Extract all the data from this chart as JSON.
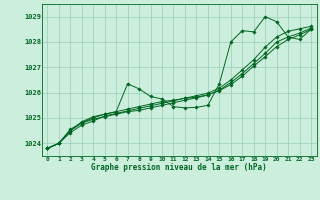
{
  "bg_color": "#cceedd",
  "grid_color": "#99ccbb",
  "line_color": "#006622",
  "marker_color": "#006622",
  "title": "Graphe pression niveau de la mer (hPa)",
  "xlim": [
    -0.5,
    23.5
  ],
  "ylim": [
    1023.5,
    1029.5
  ],
  "yticks": [
    1024,
    1025,
    1026,
    1027,
    1028,
    1029
  ],
  "xticks": [
    0,
    1,
    2,
    3,
    4,
    5,
    6,
    7,
    8,
    9,
    10,
    11,
    12,
    13,
    14,
    15,
    16,
    17,
    18,
    19,
    20,
    21,
    22,
    23
  ],
  "series": [
    {
      "x": [
        0,
        1,
        2,
        3,
        4,
        5,
        6,
        7,
        8,
        9,
        10,
        11,
        12,
        13,
        14,
        15,
        16,
        17,
        18,
        19,
        20,
        21,
        22,
        23
      ],
      "y": [
        1023.8,
        1024.0,
        1024.5,
        1024.8,
        1024.95,
        1025.05,
        1025.15,
        1025.25,
        1025.3,
        1025.4,
        1025.5,
        1025.6,
        1025.7,
        1025.8,
        1025.9,
        1026.1,
        1026.4,
        1026.75,
        1027.15,
        1027.55,
        1028.0,
        1028.2,
        1028.35,
        1028.55
      ]
    },
    {
      "x": [
        0,
        1,
        2,
        3,
        4,
        5,
        6,
        7,
        8,
        9,
        10,
        11,
        12,
        13,
        14,
        15,
        16,
        17,
        18,
        19,
        20,
        21,
        22,
        23
      ],
      "y": [
        1023.8,
        1024.0,
        1024.5,
        1024.85,
        1025.05,
        1025.15,
        1025.25,
        1026.35,
        1026.15,
        1025.85,
        1025.75,
        1025.45,
        1025.4,
        1025.42,
        1025.5,
        1026.35,
        1028.0,
        1028.45,
        1028.4,
        1029.0,
        1028.8,
        1028.2,
        1028.1,
        1028.5
      ]
    },
    {
      "x": [
        0,
        1,
        2,
        3,
        4,
        5,
        6,
        7,
        8,
        9,
        10,
        11,
        12,
        13,
        14,
        15,
        16,
        17,
        18,
        19,
        20,
        21,
        22,
        23
      ],
      "y": [
        1023.8,
        1024.0,
        1024.55,
        1024.82,
        1025.0,
        1025.15,
        1025.25,
        1025.35,
        1025.45,
        1025.55,
        1025.65,
        1025.7,
        1025.78,
        1025.88,
        1025.98,
        1026.18,
        1026.5,
        1026.9,
        1027.3,
        1027.8,
        1028.2,
        1028.42,
        1028.52,
        1028.62
      ]
    },
    {
      "x": [
        0,
        1,
        2,
        3,
        4,
        5,
        6,
        7,
        8,
        9,
        10,
        11,
        12,
        13,
        14,
        15,
        16,
        17,
        18,
        19,
        20,
        21,
        22,
        23
      ],
      "y": [
        1023.8,
        1024.0,
        1024.42,
        1024.72,
        1024.88,
        1025.08,
        1025.18,
        1025.28,
        1025.38,
        1025.48,
        1025.58,
        1025.68,
        1025.78,
        1025.82,
        1025.92,
        1026.08,
        1026.32,
        1026.65,
        1027.05,
        1027.42,
        1027.82,
        1028.1,
        1028.28,
        1028.5
      ]
    }
  ]
}
